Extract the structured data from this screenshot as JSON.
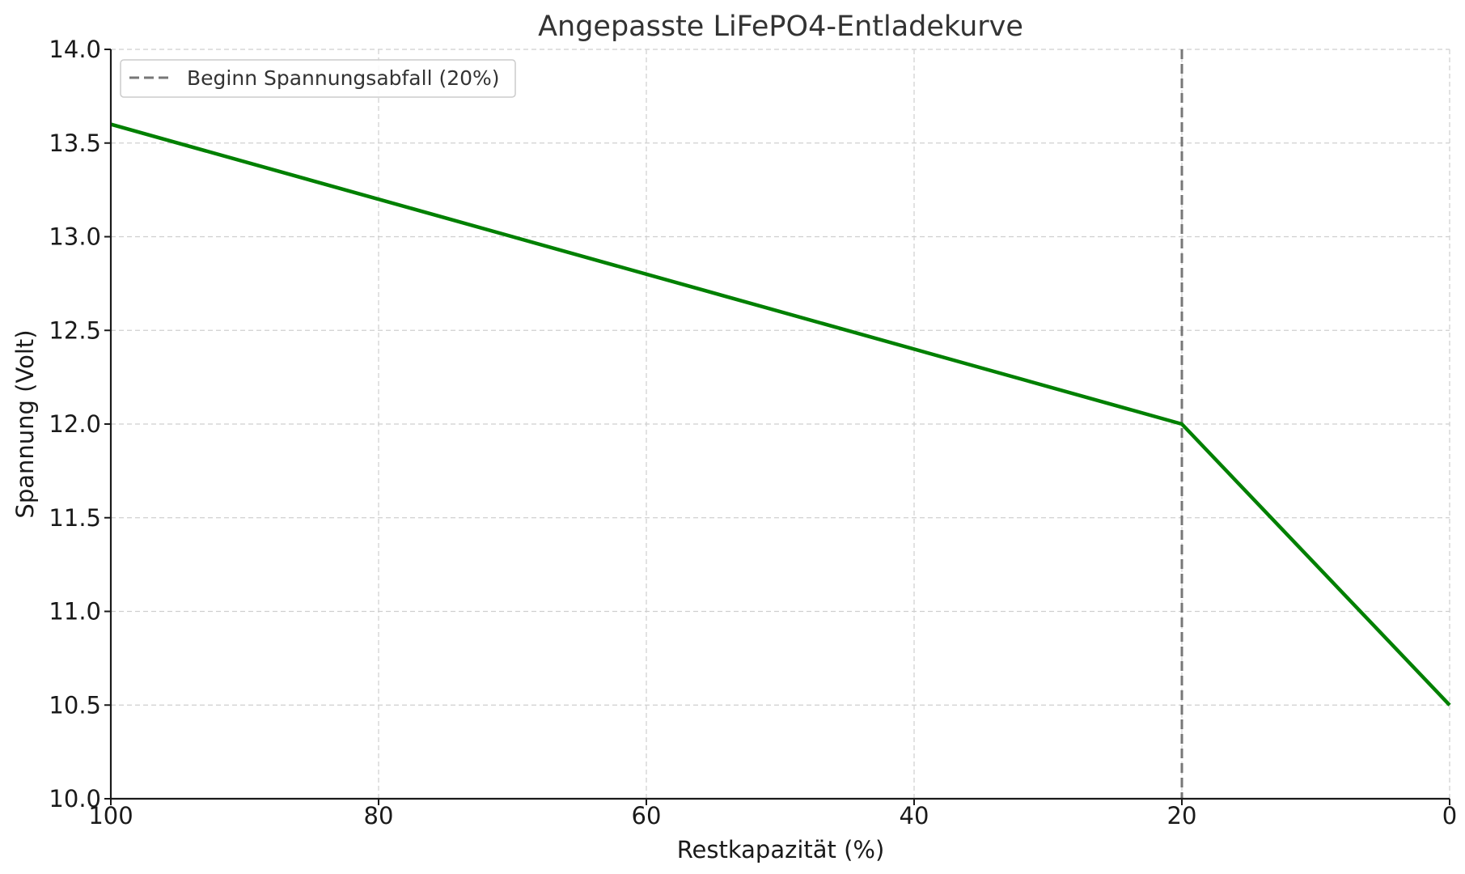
{
  "chart_data": {
    "type": "line",
    "title": "Angepasste LiFePO4-Entladekurve",
    "xlabel": "Restkapazität (%)",
    "ylabel": "Spannung (Volt)",
    "xlim": [
      100,
      0
    ],
    "ylim": [
      10.0,
      14.0
    ],
    "x_inverted": true,
    "grid": true,
    "x_ticks": [
      100,
      80,
      60,
      40,
      20,
      0
    ],
    "x_tick_labels": [
      "100",
      "80",
      "60",
      "40",
      "20",
      "0"
    ],
    "y_ticks": [
      10.0,
      10.5,
      11.0,
      11.5,
      12.0,
      12.5,
      13.0,
      13.5,
      14.0
    ],
    "y_tick_labels": [
      "10.0",
      "10.5",
      "11.0",
      "11.5",
      "12.0",
      "12.5",
      "13.0",
      "13.5",
      "14.0"
    ],
    "series": [
      {
        "color": "#008000",
        "x": [
          100,
          20,
          0
        ],
        "y": [
          13.6,
          12.0,
          10.5
        ]
      }
    ],
    "vlines": [
      {
        "x": 20,
        "label": "Beginn Spannungsabfall (20%)",
        "color": "#777777",
        "style": "dashed"
      }
    ],
    "legend": {
      "position": "top-left",
      "entries": [
        "Beginn Spannungsabfall (20%)"
      ]
    }
  }
}
